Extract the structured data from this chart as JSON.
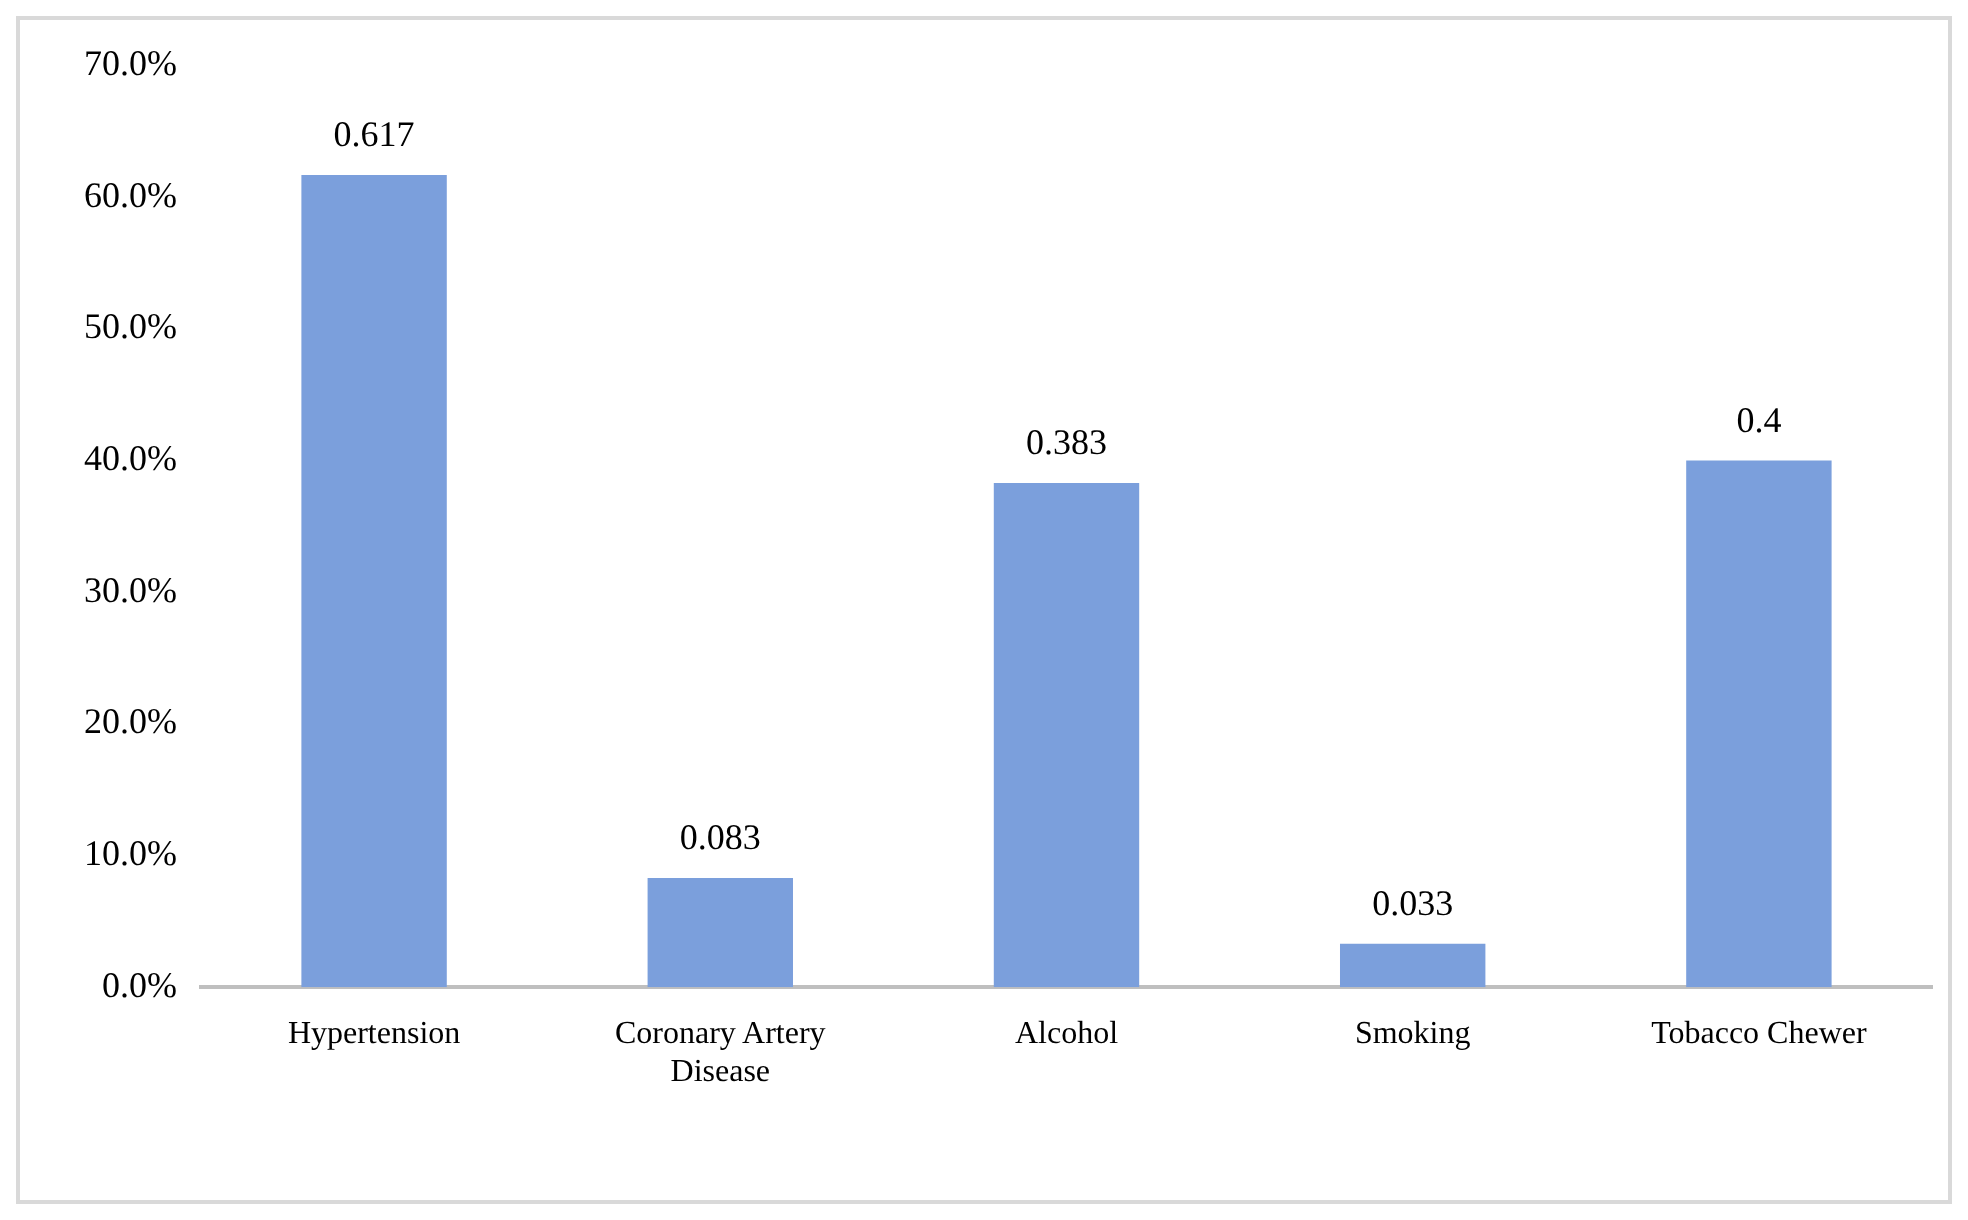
{
  "chart_data": {
    "type": "bar",
    "categories": [
      "Hypertension",
      "Coronary Artery Disease",
      "Alcohol",
      "Smoking",
      "Tobacco Chewer"
    ],
    "values": [
      0.617,
      0.083,
      0.383,
      0.033,
      0.4
    ],
    "color": "#7b9fdc",
    "ylim": [
      0,
      0.7
    ],
    "yticks": [
      {
        "value": 0,
        "label": "0.0%"
      },
      {
        "value": 0.1,
        "label": "10.0%"
      },
      {
        "value": 0.2,
        "label": "20.0%"
      },
      {
        "value": 0.3,
        "label": "30.0%"
      },
      {
        "value": 0.4,
        "label": "40.0%"
      },
      {
        "value": 0.5,
        "label": "50.0%"
      },
      {
        "value": 0.6,
        "label": "60.0%"
      },
      {
        "value": 0.7,
        "label": "70.0%"
      }
    ],
    "grid": false,
    "legend": false,
    "data_labels": true
  }
}
